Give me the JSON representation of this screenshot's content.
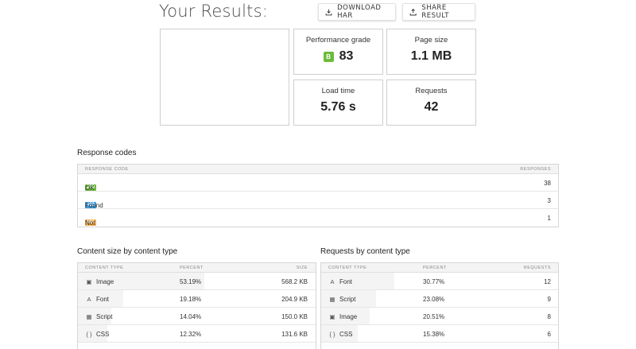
{
  "header": {
    "title": "Your Results:",
    "download_har": "DOWNLOAD HAR",
    "share_result": "SHARE RESULT"
  },
  "metrics": {
    "grade": {
      "label": "Performance grade",
      "letter": "B",
      "value": "83",
      "badge_color": "#6cbb3c"
    },
    "page_size": {
      "label": "Page size",
      "value": "1.1 MB"
    },
    "load_time": {
      "label": "Load time",
      "value": "5.76 s"
    },
    "requests": {
      "label": "Requests",
      "value": "42"
    }
  },
  "response_codes": {
    "title": "Response codes",
    "col_code": "RESPONSE CODE",
    "col_responses": "RESPONSES",
    "rows": [
      {
        "code": "200",
        "label": "OK",
        "count": "38",
        "color": "#6cbb3c"
      },
      {
        "code": "302",
        "label": "Found",
        "count": "3",
        "color": "#3b9ae1"
      },
      {
        "code": "404",
        "label": "Not Found",
        "count": "1",
        "color": "#f0ad4e"
      }
    ]
  },
  "content_size": {
    "title": "Content size by content type",
    "col_type": "CONTENT TYPE",
    "col_percent": "PERCENT",
    "col_size": "SIZE",
    "rows": [
      {
        "icon": "image-icon",
        "type": "Image",
        "percent": "53.19%",
        "size": "568.2 KB"
      },
      {
        "icon": "font-icon",
        "type": "Font",
        "percent": "19.18%",
        "size": "204.9 KB"
      },
      {
        "icon": "script-icon",
        "type": "Script",
        "percent": "14.04%",
        "size": "150.0 KB"
      },
      {
        "icon": "css-icon",
        "type": "CSS",
        "percent": "12.32%",
        "size": "131.6 KB"
      }
    ]
  },
  "requests_by_type": {
    "title": "Requests by content type",
    "col_type": "CONTENT TYPE",
    "col_percent": "PERCENT",
    "col_requests": "REQUESTS",
    "rows": [
      {
        "icon": "font-icon",
        "type": "Font",
        "percent": "30.77%",
        "requests": "12"
      },
      {
        "icon": "script-icon",
        "type": "Script",
        "percent": "23.08%",
        "requests": "9"
      },
      {
        "icon": "image-icon",
        "type": "Image",
        "percent": "20.51%",
        "requests": "8"
      },
      {
        "icon": "css-icon",
        "type": "CSS",
        "percent": "15.38%",
        "requests": "6"
      }
    ]
  }
}
